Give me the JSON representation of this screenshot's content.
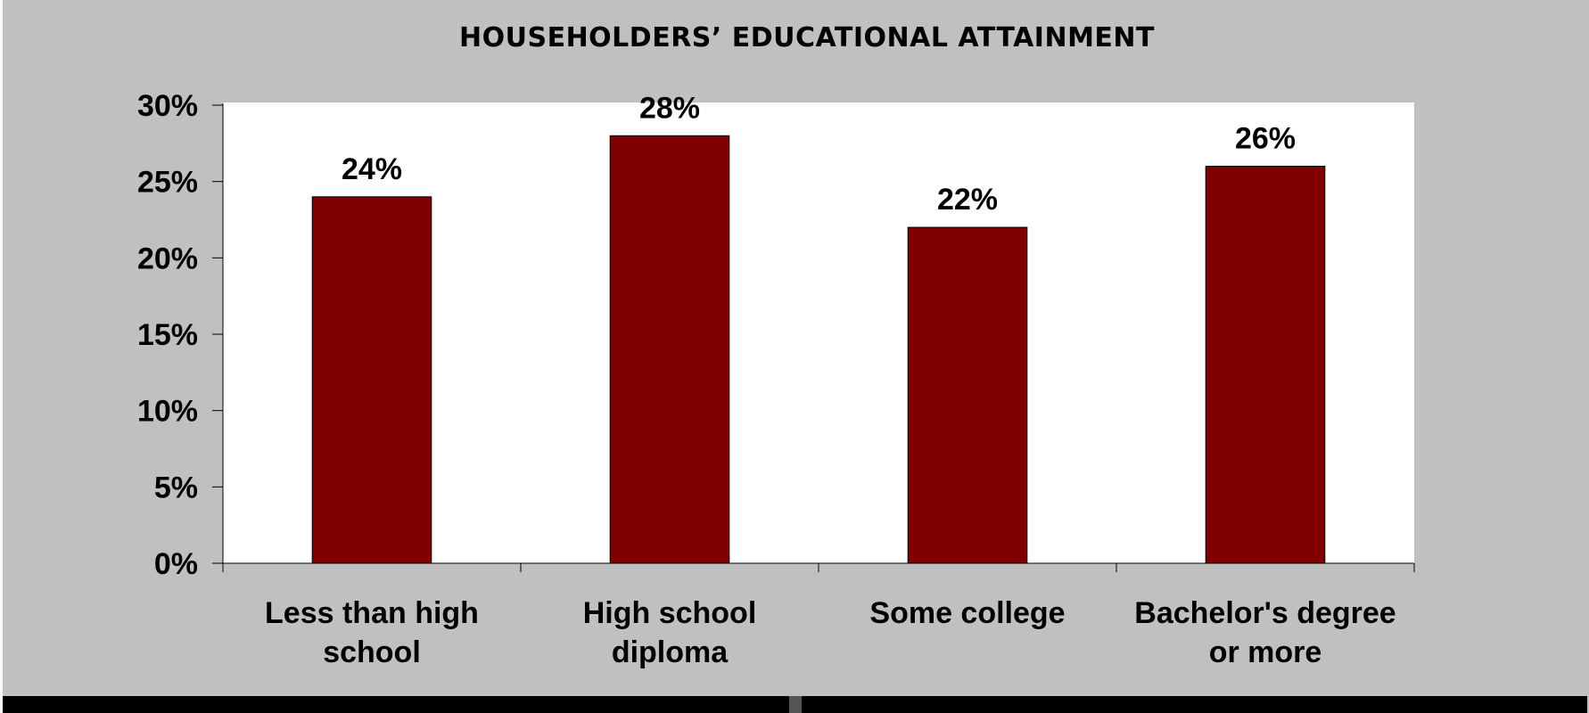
{
  "chart_data": {
    "type": "bar",
    "title": "HOUSEHOLDERS’ EDUCATIONAL ATTAINMENT",
    "categories": [
      [
        "Less than high",
        "school"
      ],
      [
        "High school",
        "diploma"
      ],
      [
        "Some college"
      ],
      [
        "Bachelor's degree",
        "or more"
      ]
    ],
    "values": [
      24,
      28,
      22,
      26
    ],
    "value_labels": [
      "24%",
      "28%",
      "22%",
      "26%"
    ],
    "y_ticks": [
      "0%",
      "5%",
      "10%",
      "15%",
      "20%",
      "25%",
      "30%"
    ],
    "ylim": [
      0,
      30
    ],
    "y_step": 5,
    "grid": false,
    "legend": "none",
    "colors": {
      "bar": "#800000",
      "plot_background": "#ffffff",
      "chart_background": "#c0c0c0"
    }
  }
}
